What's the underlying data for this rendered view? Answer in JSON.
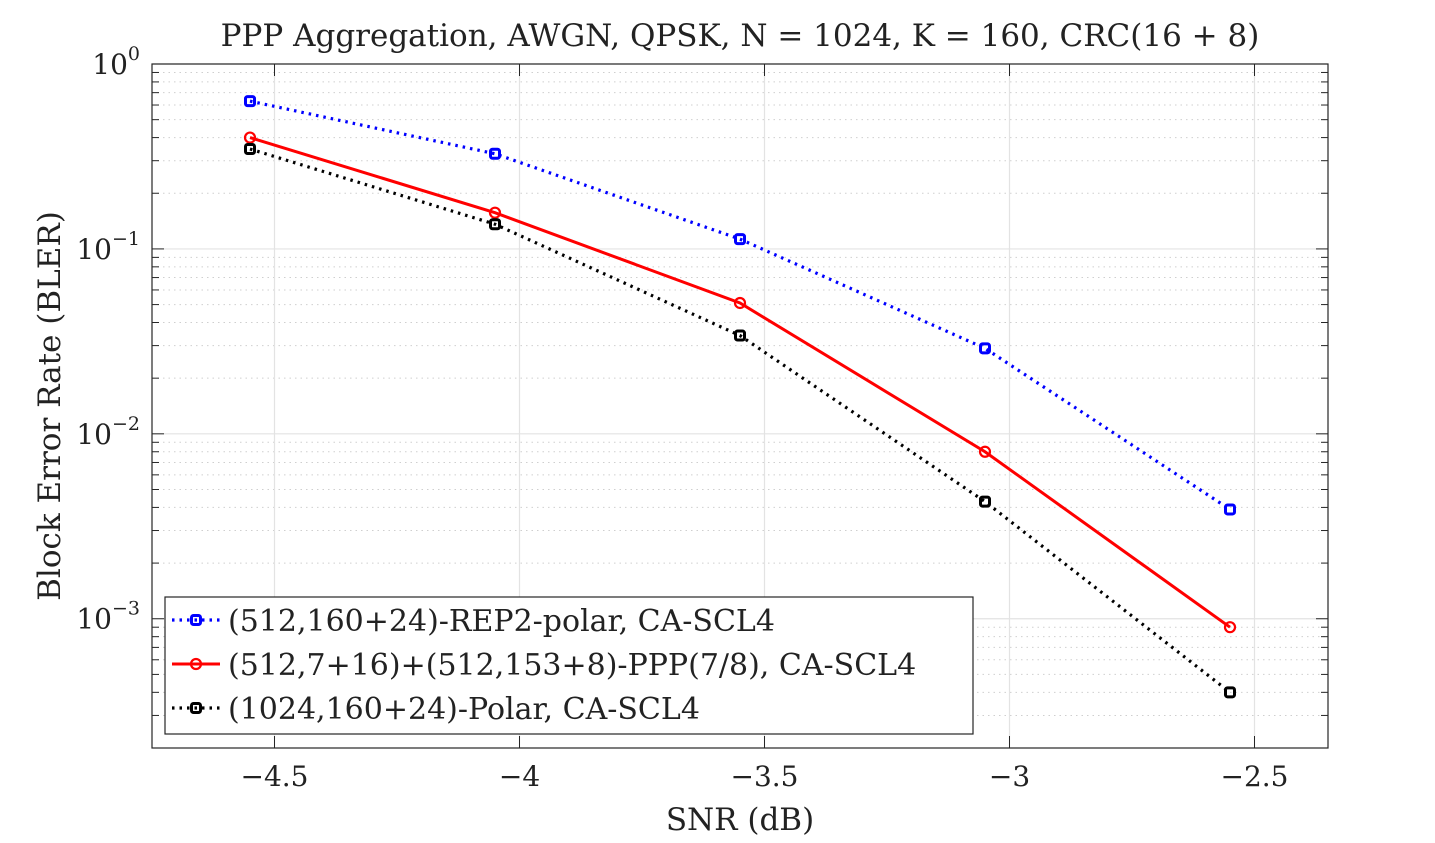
{
  "chart_data": {
    "type": "line",
    "title": "PPP Aggregation, AWGN, QPSK, N = 1024, K = 160, CRC(16 + 8)",
    "xlabel": "SNR (dB)",
    "ylabel": "Block Error Rate (BLER)",
    "xlim": [
      -4.75,
      -2.35
    ],
    "ylim": [
      0.0002,
      1
    ],
    "yscale": "log",
    "grid": true,
    "minor_grid": true,
    "legend_placement": "bottom-left",
    "xticks": [
      -4.5,
      -4,
      -3.5,
      -3,
      -2.5
    ],
    "xtick_labels": [
      "-4.5",
      "-4",
      "-3.5",
      "-3",
      "-2.5"
    ],
    "yticks": [
      1,
      0.1,
      0.01,
      0.001
    ],
    "ytick_labels": [
      [
        "10",
        "0"
      ],
      [
        "10",
        "−1"
      ],
      [
        "10",
        "−2"
      ],
      [
        "10",
        "−3"
      ]
    ],
    "x": [
      -4.55,
      -4.05,
      -3.55,
      -3.05,
      -2.55
    ],
    "series": [
      {
        "name": "(512,160+24)-REP2-polar, CA-SCL4",
        "color": "#0000ff",
        "line": "dotted",
        "marker": "square",
        "values": [
          0.63,
          0.327,
          0.113,
          0.029,
          0.0039
        ]
      },
      {
        "name": "(512,7+16)+(512,153+8)-PPP(7/8), CA-SCL4",
        "color": "#ff0000",
        "line": "solid",
        "marker": "circle",
        "values": [
          0.4,
          0.157,
          0.051,
          0.008,
          0.0009
        ]
      },
      {
        "name": "(1024,160+24)-Polar, CA-SCL4",
        "color": "#000000",
        "line": "dotted",
        "marker": "square",
        "values": [
          0.347,
          0.136,
          0.034,
          0.0043,
          0.0004
        ]
      }
    ]
  }
}
